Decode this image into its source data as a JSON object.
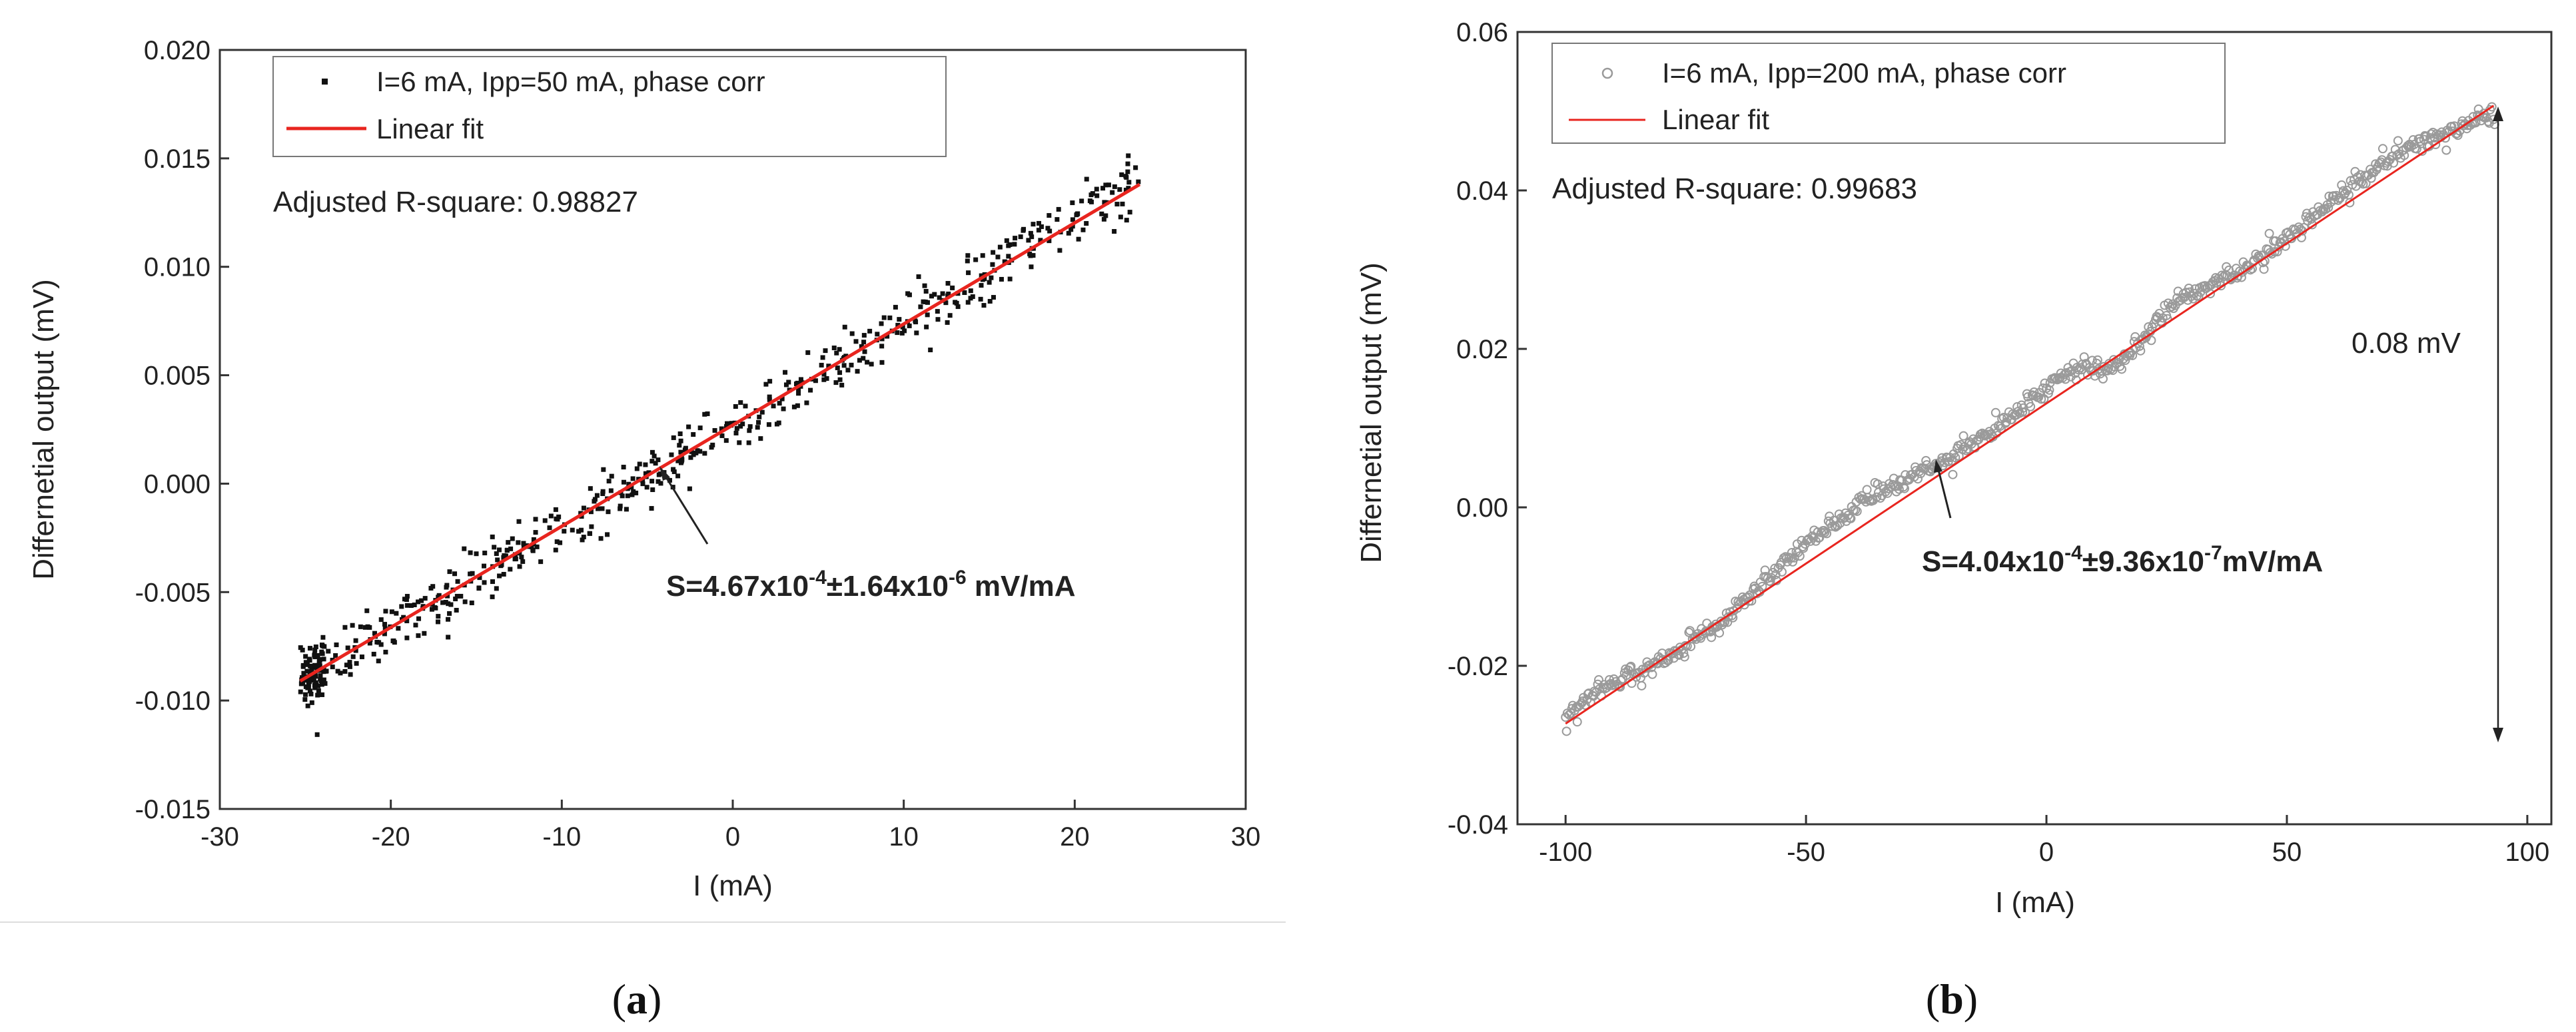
{
  "chart_data": [
    {
      "type": "scatter",
      "panel_label": "(a)",
      "xlabel": "I (mA)",
      "ylabel": "Differnetial output (mV)",
      "xlim": [
        -30,
        30
      ],
      "ylim": [
        -0.015,
        0.02
      ],
      "xticks": [
        "-30",
        "-20",
        "-10",
        "0",
        "10",
        "20",
        "30"
      ],
      "yticks": [
        "-0.015",
        "-0.010",
        "-0.005",
        "0.000",
        "0.005",
        "0.010",
        "0.015",
        "0.020"
      ],
      "legend": [
        "I=6 mA, Ipp=50 mA, phase corr",
        "Linear fit"
      ],
      "annotation_r2": "Adjusted R-square: 0.98827",
      "annotation_slope": "S=4.67x10⁻⁴±1.64x10⁻⁶ mV/mA",
      "series": [
        {
          "name": "I=6 mA, Ipp=50 mA, phase corr",
          "style": "dots",
          "x_range": [
            -25.3,
            23.8
          ],
          "noise_sd": 0.0007,
          "n_points": 620
        },
        {
          "name": "Linear fit",
          "style": "line",
          "x": [
            -25.3,
            23.8
          ],
          "y": [
            -0.0091,
            0.0138
          ]
        }
      ],
      "colors": {
        "data": "#111111",
        "fit": "#e8251f"
      }
    },
    {
      "type": "scatter",
      "panel_label": "(b)",
      "xlabel": "I (mA)",
      "ylabel": "Differnetial output (mV)",
      "xlim": [
        -110,
        105
      ],
      "ylim": [
        -0.04,
        0.06
      ],
      "xticks": [
        "-100",
        "-50",
        "0",
        "50",
        "100"
      ],
      "yticks": [
        "-0.04",
        "-0.02",
        "0.00",
        "0.02",
        "0.04",
        "0.06"
      ],
      "legend": [
        "I=6 mA, Ipp=200 mA, phase corr",
        "Linear fit"
      ],
      "annotation_r2": "Adjusted R-square: 0.99683",
      "annotation_slope": "S=4.04x10⁻⁴±9.36x10⁻⁷mV/mA",
      "annotation_span": "0.08 mV",
      "series": [
        {
          "name": "I=6 mA, Ipp=200 mA, phase corr",
          "style": "open-circles",
          "x_range": [
            -100,
            93
          ],
          "n_points": 520
        },
        {
          "name": "Linear fit",
          "style": "line",
          "x": [
            -100,
            93
          ],
          "y": [
            -0.0273,
            0.0507
          ]
        }
      ],
      "colors": {
        "data": "#9a9a9a",
        "fit": "#e8251f"
      }
    }
  ]
}
